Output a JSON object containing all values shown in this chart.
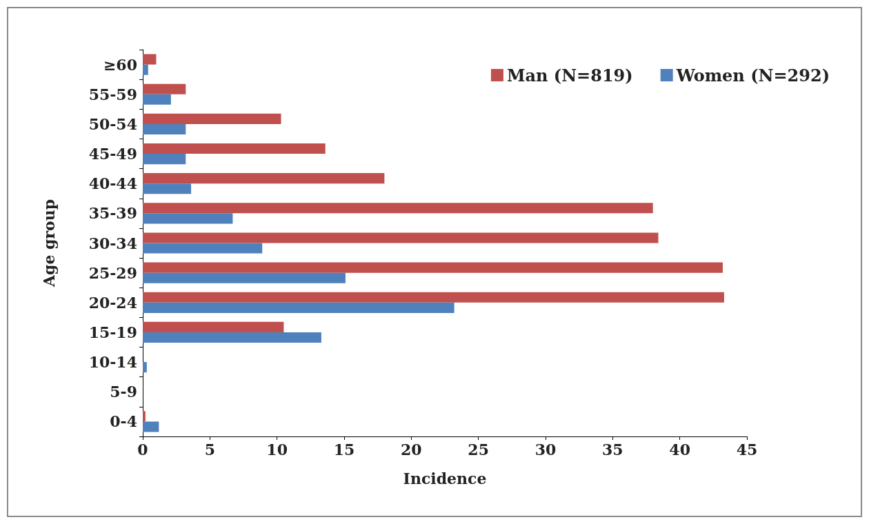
{
  "chart_data": {
    "type": "bar",
    "orientation": "horizontal",
    "xlabel": "Incidence",
    "ylabel": "Age group",
    "categories": [
      "≥60",
      "55-59",
      "50-54",
      "45-49",
      "40-44",
      "35-39",
      "30-34",
      "25-29",
      "20-24",
      "15-19",
      "10-14",
      "5-9",
      "0-4"
    ],
    "series": [
      {
        "name": "Man (N=819)",
        "color": "#c0504d",
        "values": [
          1.0,
          3.2,
          10.3,
          13.6,
          18.0,
          38.0,
          38.4,
          43.2,
          43.3,
          10.5,
          0,
          0,
          0.2
        ]
      },
      {
        "name": "Women (N=292)",
        "color": "#4f81bd",
        "values": [
          0.4,
          2.1,
          3.2,
          3.2,
          3.6,
          6.7,
          8.9,
          15.1,
          23.2,
          13.3,
          0.3,
          0,
          1.2
        ]
      }
    ],
    "xlim": [
      0,
      45
    ],
    "xticks": [
      0,
      5,
      10,
      15,
      20,
      25,
      30,
      35,
      40,
      45
    ],
    "grid": false,
    "legend": "top right"
  }
}
